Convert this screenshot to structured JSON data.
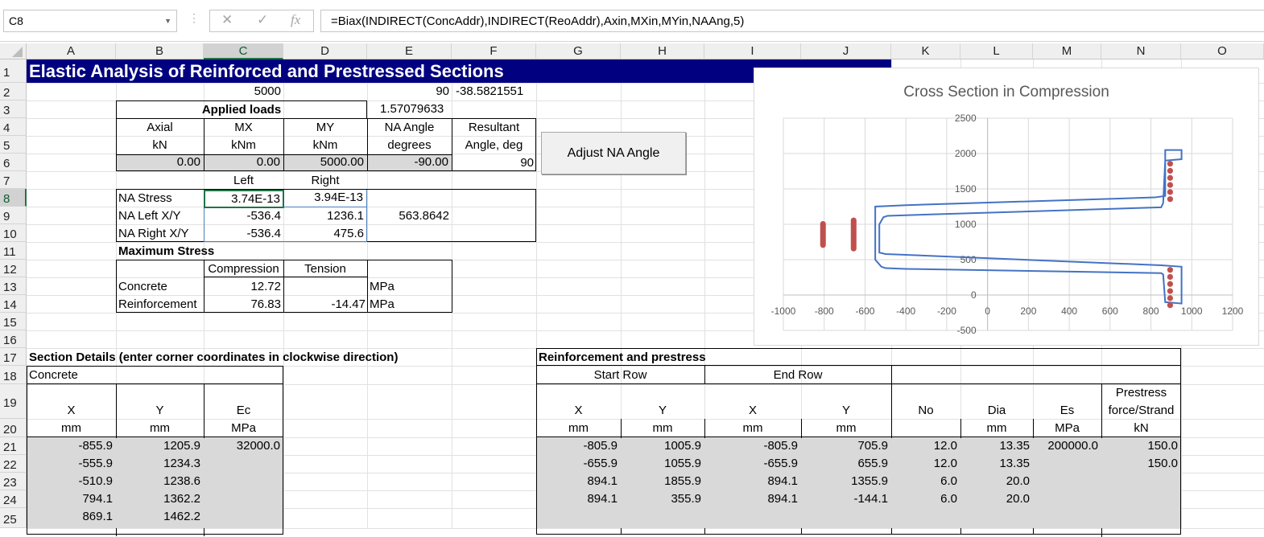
{
  "formula_bar": {
    "name_box": "C8",
    "formula": "=Biax(INDIRECT(ConcAddr),INDIRECT(ReoAddr),Axin,MXin,MYin,NAAng,5)",
    "cancel_icon": "✕",
    "enter_icon": "✓",
    "fx_label": "fx"
  },
  "columns": [
    "A",
    "B",
    "C",
    "D",
    "E",
    "F",
    "G",
    "H",
    "I",
    "J",
    "K",
    "L",
    "M",
    "N",
    "O"
  ],
  "rows": [
    "1",
    "2",
    "3",
    "4",
    "5",
    "6",
    "7",
    "8",
    "9",
    "10",
    "11",
    "12",
    "13",
    "14",
    "15",
    "16",
    "17",
    "18",
    "19",
    "20",
    "21",
    "22",
    "23",
    "24",
    "25"
  ],
  "sheet": {
    "title": "Elastic Analysis of Reinforced and Prestressed Sections",
    "r2": {
      "c": "5000",
      "e": "90",
      "f": "-38.5821551"
    },
    "r3": {
      "applied_loads": "Applied loads",
      "e": "1.57079633"
    },
    "r4": {
      "b": "Axial",
      "c": "MX",
      "d": "MY",
      "e": "NA Angle",
      "f": "Resultant"
    },
    "r5": {
      "b": "kN",
      "c": "kNm",
      "d": "kNm",
      "e": "degrees",
      "f": "Angle, deg"
    },
    "r6": {
      "b": "0.00",
      "c": "0.00",
      "d": "5000.00",
      "e": "-90.00",
      "f": "90"
    },
    "r7": {
      "c": "Left",
      "d": "Right"
    },
    "r8": {
      "b": "NA Stress",
      "c": "3.74E-13",
      "d": "3.94E-13"
    },
    "r9": {
      "b": "NA Left X/Y",
      "c": "-536.4",
      "d": "1236.1",
      "e": "563.8642"
    },
    "r10": {
      "b": "NA Right X/Y",
      "c": "-536.4",
      "d": "475.6"
    },
    "r11": {
      "b": "Maximum Stress"
    },
    "r12": {
      "c": "Compression",
      "d": "Tension"
    },
    "r13": {
      "b": "Concrete",
      "c": "12.72",
      "e": "MPa"
    },
    "r14": {
      "b": "Reinforcement",
      "c": "76.83",
      "d": "-14.47",
      "e": "MPa"
    },
    "r17": {
      "a": "Section Details (enter corner coordinates in clockwise direction)",
      "g": "Reinforcement and prestress"
    },
    "r18": {
      "a": "Concrete",
      "start_row": "Start Row",
      "end_row": "End Row"
    },
    "r19": {
      "a": "X",
      "b": "Y",
      "c": "Ec",
      "g": "X",
      "h": "Y",
      "i": "X",
      "j": "Y",
      "k": "No",
      "l": "Dia",
      "m": "Es",
      "n1": "Prestress",
      "n2": "force/Strand"
    },
    "r20": {
      "a": "mm",
      "b": "mm",
      "c": "MPa",
      "g": "mm",
      "h": "mm",
      "i": "mm",
      "j": "mm",
      "l": "mm",
      "m": "MPa",
      "n": "kN"
    },
    "concrete_rows": [
      {
        "x": "-855.9",
        "y": "1205.9",
        "ec": "32000.0"
      },
      {
        "x": "-555.9",
        "y": "1234.3",
        "ec": ""
      },
      {
        "x": "-510.9",
        "y": "1238.6",
        "ec": ""
      },
      {
        "x": "794.1",
        "y": "1362.2",
        "ec": ""
      },
      {
        "x": "869.1",
        "y": "1462.2",
        "ec": ""
      }
    ],
    "reo_rows": [
      {
        "x1": "-805.9",
        "y1": "1005.9",
        "x2": "-805.9",
        "y2": "705.9",
        "no": "12.0",
        "dia": "13.35",
        "es": "200000.0",
        "pf": "150.0"
      },
      {
        "x1": "-655.9",
        "y1": "1055.9",
        "x2": "-655.9",
        "y2": "655.9",
        "no": "12.0",
        "dia": "13.35",
        "es": "",
        "pf": "150.0"
      },
      {
        "x1": "894.1",
        "y1": "1855.9",
        "x2": "894.1",
        "y2": "1355.9",
        "no": "6.0",
        "dia": "20.0",
        "es": "",
        "pf": ""
      },
      {
        "x1": "894.1",
        "y1": "355.9",
        "x2": "894.1",
        "y2": "-144.1",
        "no": "6.0",
        "dia": "20.0",
        "es": "",
        "pf": ""
      }
    ]
  },
  "adjust_button": "Adjust NA Angle",
  "chart_data": {
    "type": "scatter",
    "title": "Cross Section in Compression",
    "xlim": [
      -1000,
      1200
    ],
    "ylim": [
      -500,
      2500
    ],
    "x_ticks": [
      "-1000",
      "-800",
      "-600",
      "-400",
      "-200",
      "0",
      "200",
      "400",
      "600",
      "800",
      "1000",
      "1200"
    ],
    "y_ticks": [
      "-500",
      "0",
      "500",
      "1000",
      "1500",
      "2000",
      "2500"
    ],
    "grid": true,
    "outline_color": "#4472c4",
    "bar_color": "#c0504d",
    "outline": [
      [
        -550,
        1200
      ],
      [
        -550,
        500
      ],
      [
        -520,
        400
      ],
      [
        -500,
        380
      ],
      [
        -400,
        370
      ],
      [
        850,
        310
      ],
      [
        860,
        290
      ],
      [
        870,
        -100
      ],
      [
        950,
        -120
      ],
      [
        950,
        0
      ],
      [
        950,
        400
      ],
      [
        850,
        420
      ],
      [
        -500,
        580
      ],
      [
        -530,
        600
      ],
      [
        -530,
        1000
      ],
      [
        -510,
        1100
      ],
      [
        -490,
        1120
      ],
      [
        850,
        1240
      ],
      [
        860,
        1300
      ],
      [
        870,
        1900
      ],
      [
        950,
        1920
      ],
      [
        950,
        2050
      ],
      [
        870,
        2050
      ],
      [
        870,
        1400
      ],
      [
        820,
        1380
      ],
      [
        -400,
        1270
      ],
      [
        -550,
        1250
      ]
    ],
    "bars": [
      {
        "x": -805.9,
        "y1": 1005.9,
        "y2": 705.9
      },
      {
        "x": -655.9,
        "y1": 1055.9,
        "y2": 655.9
      }
    ],
    "strand_points": [
      {
        "x": 894.1,
        "y": 1855.9
      },
      {
        "x": 894.1,
        "y": 1755.9
      },
      {
        "x": 894.1,
        "y": 1655.9
      },
      {
        "x": 894.1,
        "y": 1555.9
      },
      {
        "x": 894.1,
        "y": 1455.9
      },
      {
        "x": 894.1,
        "y": 1355.9
      },
      {
        "x": 894.1,
        "y": 355.9
      },
      {
        "x": 894.1,
        "y": 255.9
      },
      {
        "x": 894.1,
        "y": 155.9
      },
      {
        "x": 894.1,
        "y": 55.9
      },
      {
        "x": 894.1,
        "y": -44.1
      },
      {
        "x": 894.1,
        "y": -144.1
      }
    ]
  }
}
